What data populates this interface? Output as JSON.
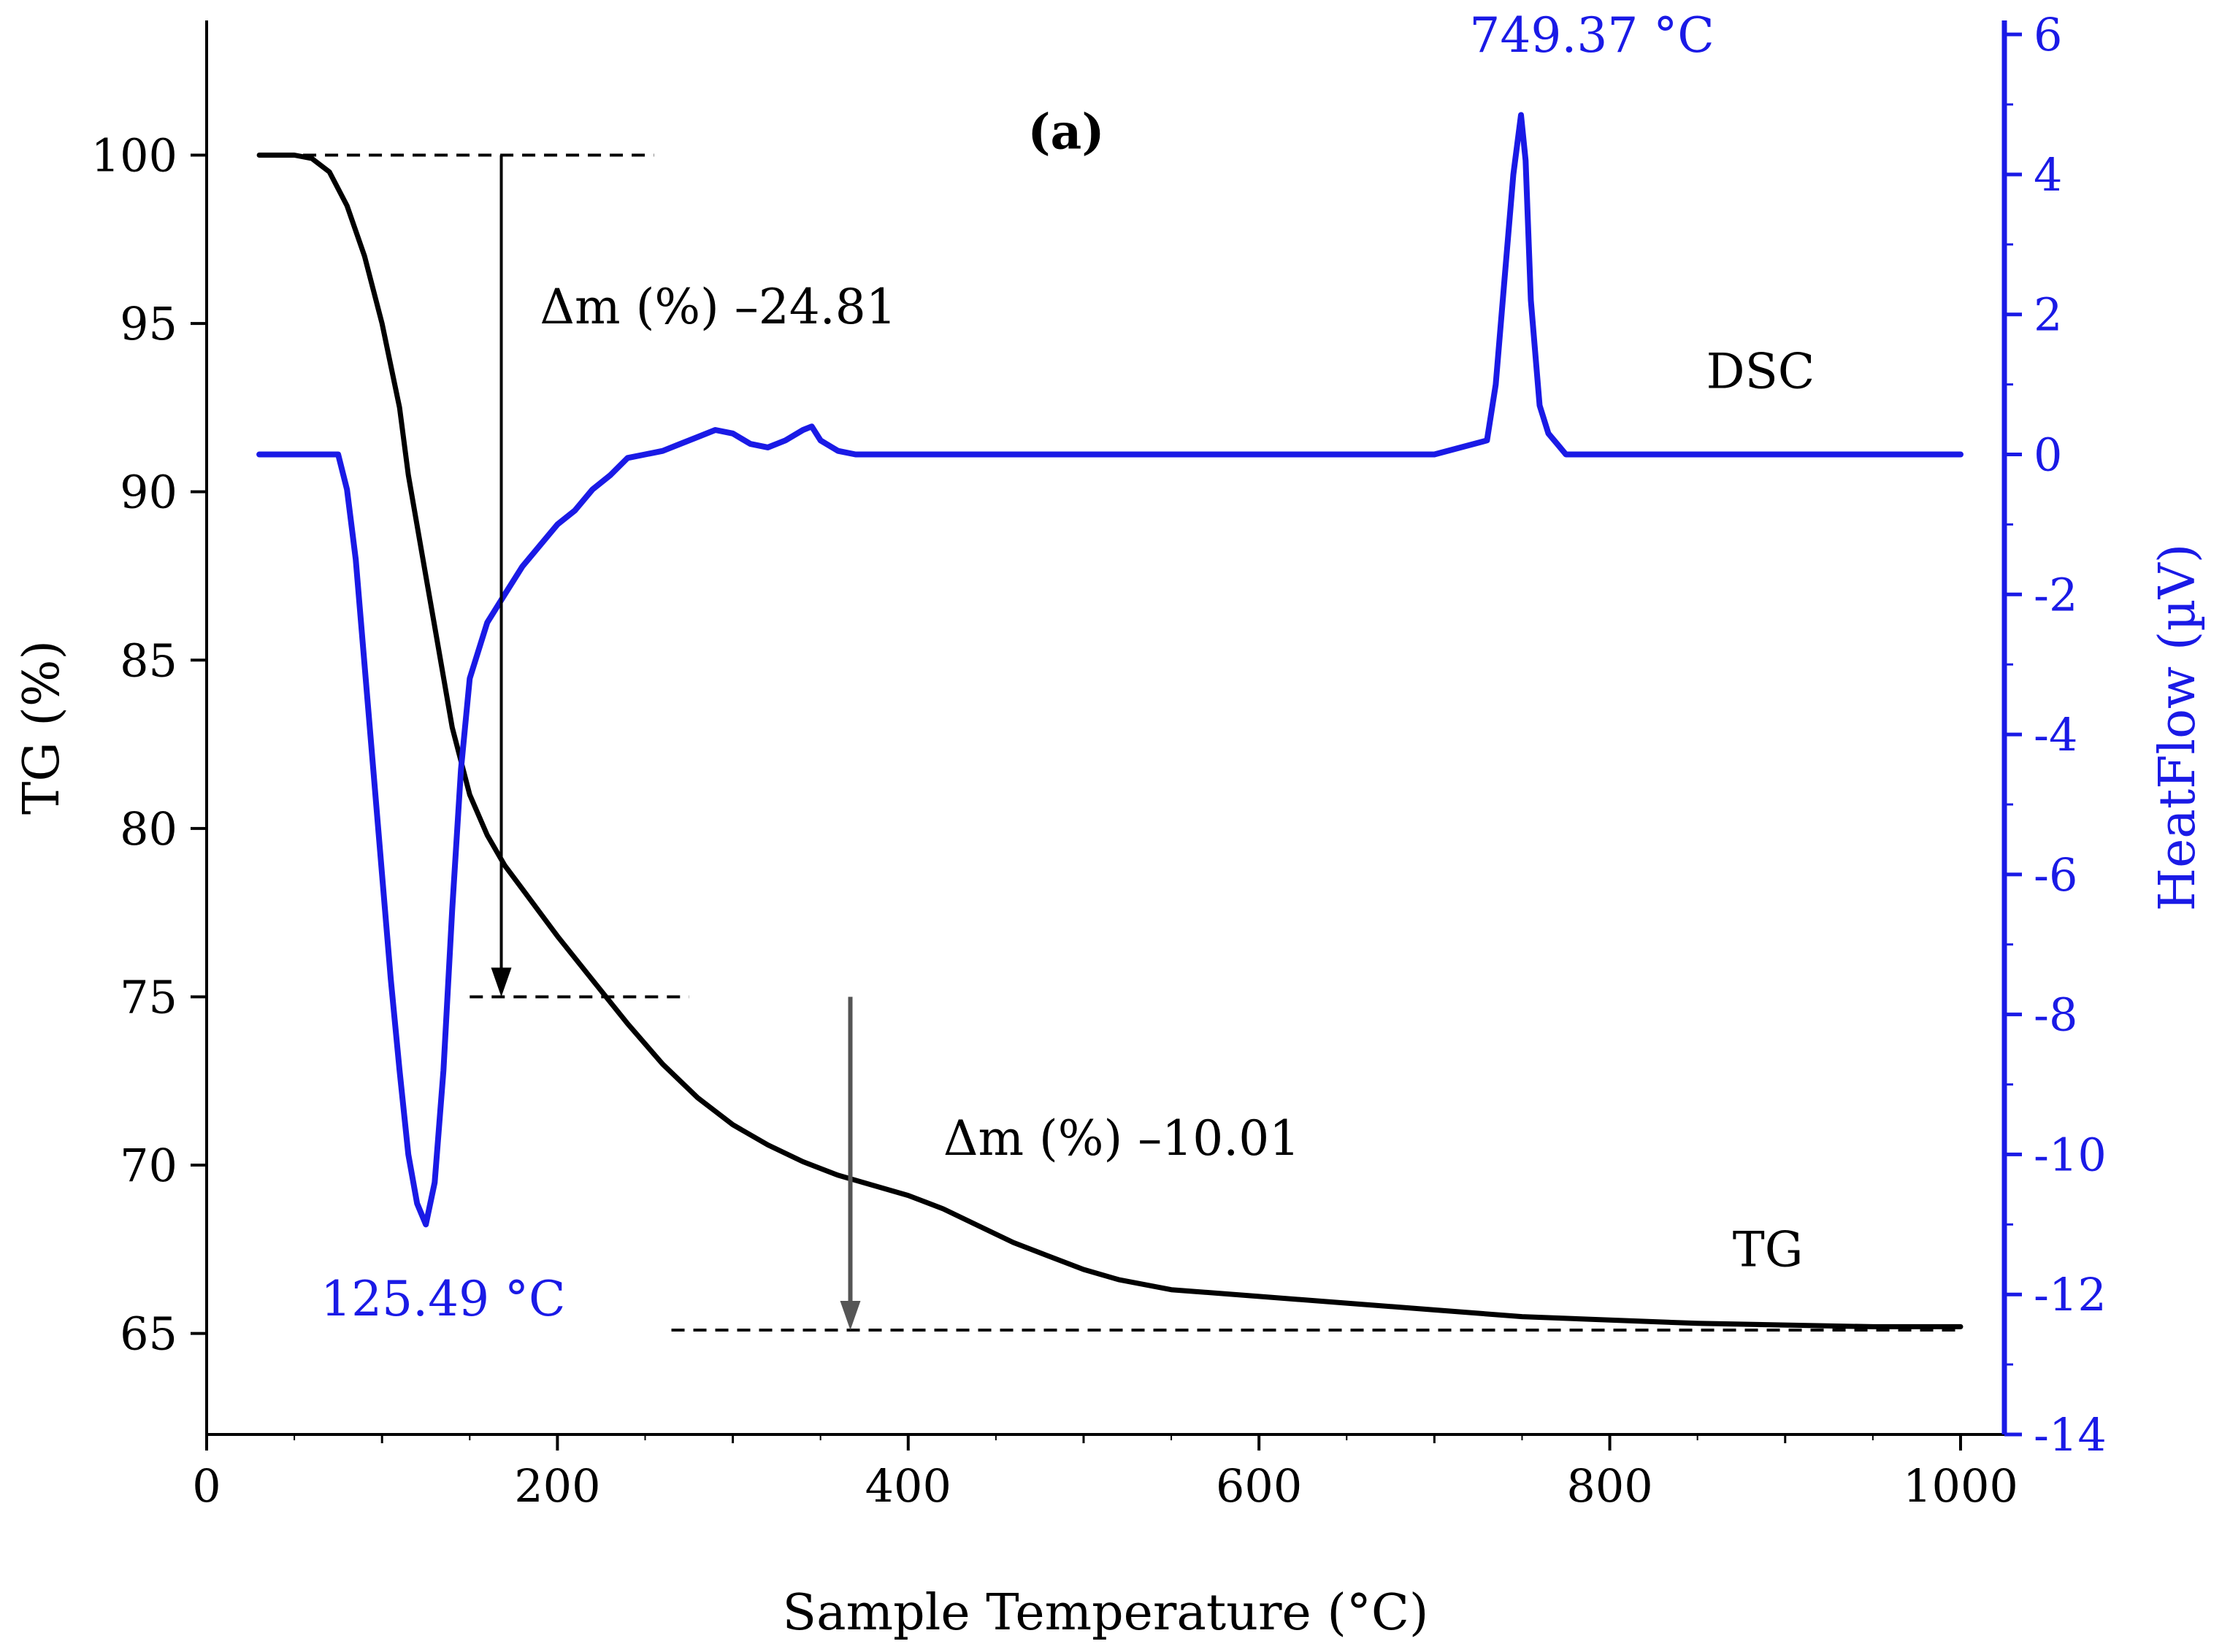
{
  "chart_data": {
    "type": "line",
    "panel_label": "(a)",
    "xlabel": "Sample Temperature (°C)",
    "xlim": [
      0,
      1025
    ],
    "xticks": [
      0,
      200,
      400,
      600,
      800,
      1000
    ],
    "xtick_labels": [
      "0",
      "200",
      "400",
      "600",
      "800",
      "1000"
    ],
    "left_axis": {
      "label": "TG (%)",
      "lim": [
        62,
        104
      ],
      "ticks": [
        65,
        70,
        75,
        80,
        85,
        90,
        95,
        100
      ],
      "tick_labels": [
        "65",
        "70",
        "75",
        "80",
        "85",
        "90",
        "95",
        "100"
      ],
      "color": "#000000"
    },
    "right_axis": {
      "label": "HeatFlow (µV)",
      "lim": [
        -14,
        6.2
      ],
      "ticks": [
        -14,
        -12,
        -10,
        -8,
        -6,
        -4,
        -2,
        0,
        2,
        4,
        6
      ],
      "tick_labels": [
        "-14",
        "-12",
        "-10",
        "-8",
        "-6",
        "-4",
        "-2",
        "0",
        "2",
        "4",
        "6"
      ],
      "color": "#1a1ae6"
    },
    "series": [
      {
        "name": "TG",
        "axis": "left",
        "color": "#000000",
        "x": [
          30,
          50,
          60,
          70,
          80,
          90,
          100,
          110,
          115,
          120,
          125,
          130,
          135,
          140,
          150,
          160,
          170,
          180,
          200,
          220,
          240,
          260,
          280,
          300,
          320,
          340,
          360,
          380,
          400,
          420,
          440,
          460,
          480,
          500,
          520,
          550,
          600,
          650,
          700,
          750,
          800,
          850,
          900,
          950,
          1000
        ],
        "y": [
          100,
          100,
          99.9,
          99.5,
          98.5,
          97,
          95,
          92.5,
          90.5,
          89,
          87.5,
          86,
          84.5,
          83,
          81,
          79.8,
          78.9,
          78.2,
          76.8,
          75.5,
          74.2,
          73,
          72,
          71.2,
          70.6,
          70.1,
          69.7,
          69.4,
          69.1,
          68.7,
          68.2,
          67.7,
          67.3,
          66.9,
          66.6,
          66.3,
          66.1,
          65.9,
          65.7,
          65.5,
          65.4,
          65.3,
          65.25,
          65.2,
          65.2
        ]
      },
      {
        "name": "DSC",
        "axis": "right",
        "color": "#1a1ae6",
        "x": [
          30,
          50,
          70,
          75,
          80,
          85,
          90,
          95,
          100,
          105,
          110,
          115,
          120,
          125,
          130,
          135,
          140,
          145,
          150,
          160,
          170,
          180,
          190,
          200,
          210,
          220,
          230,
          240,
          250,
          260,
          270,
          280,
          290,
          300,
          310,
          320,
          330,
          340,
          345,
          350,
          360,
          370,
          380,
          390,
          400,
          500,
          600,
          700,
          730,
          735,
          740,
          745,
          749.37,
          752,
          755,
          760,
          765,
          770,
          775,
          780,
          800,
          900,
          1000
        ],
        "y": [
          0,
          0,
          0,
          0,
          -0.5,
          -1.5,
          -3,
          -4.5,
          -6,
          -7.5,
          -8.8,
          -10,
          -10.7,
          -11,
          -10.4,
          -8.8,
          -6.5,
          -4.5,
          -3.2,
          -2.4,
          -2.0,
          -1.6,
          -1.3,
          -1.0,
          -0.8,
          -0.5,
          -0.3,
          -0.05,
          0,
          0.05,
          0.15,
          0.25,
          0.35,
          0.3,
          0.15,
          0.1,
          0.2,
          0.35,
          0.4,
          0.2,
          0.05,
          0,
          0,
          0,
          0,
          0,
          0,
          0,
          0.2,
          1.0,
          2.5,
          4.0,
          4.85,
          4.2,
          2.2,
          0.7,
          0.3,
          0.15,
          0,
          0,
          0,
          0,
          0
        ]
      }
    ],
    "annotations": [
      {
        "text": "Δm (%) –24.81",
        "x": 190,
        "y_left": 95
      },
      {
        "text": "Δm (%) –10.01",
        "x": 420,
        "y_left": 70.3
      },
      {
        "text": "749.37 °C",
        "x": 720,
        "y_right": 5.75
      },
      {
        "text": "125.49 °C",
        "x": 65,
        "y_right": -12.3
      },
      {
        "text": "DSC",
        "x": 855,
        "y_right": 0.95
      },
      {
        "text": "TG",
        "x": 870,
        "y_left": 67
      },
      {
        "text": "(a)",
        "x": 490,
        "y_left": 100.2
      }
    ],
    "reference_lines": [
      {
        "y_left": 100,
        "x_from": 30,
        "x_to": 255
      },
      {
        "y_left": 75,
        "x_from": 150,
        "x_to": 275
      },
      {
        "y_left": 65.1,
        "x_from": 265,
        "x_to": 1000
      }
    ],
    "arrows": [
      {
        "x": 168,
        "y_left_from": 100,
        "y_left_to": 75
      },
      {
        "x": 367,
        "y_left_from": 75,
        "y_left_to": 65.1
      }
    ]
  }
}
